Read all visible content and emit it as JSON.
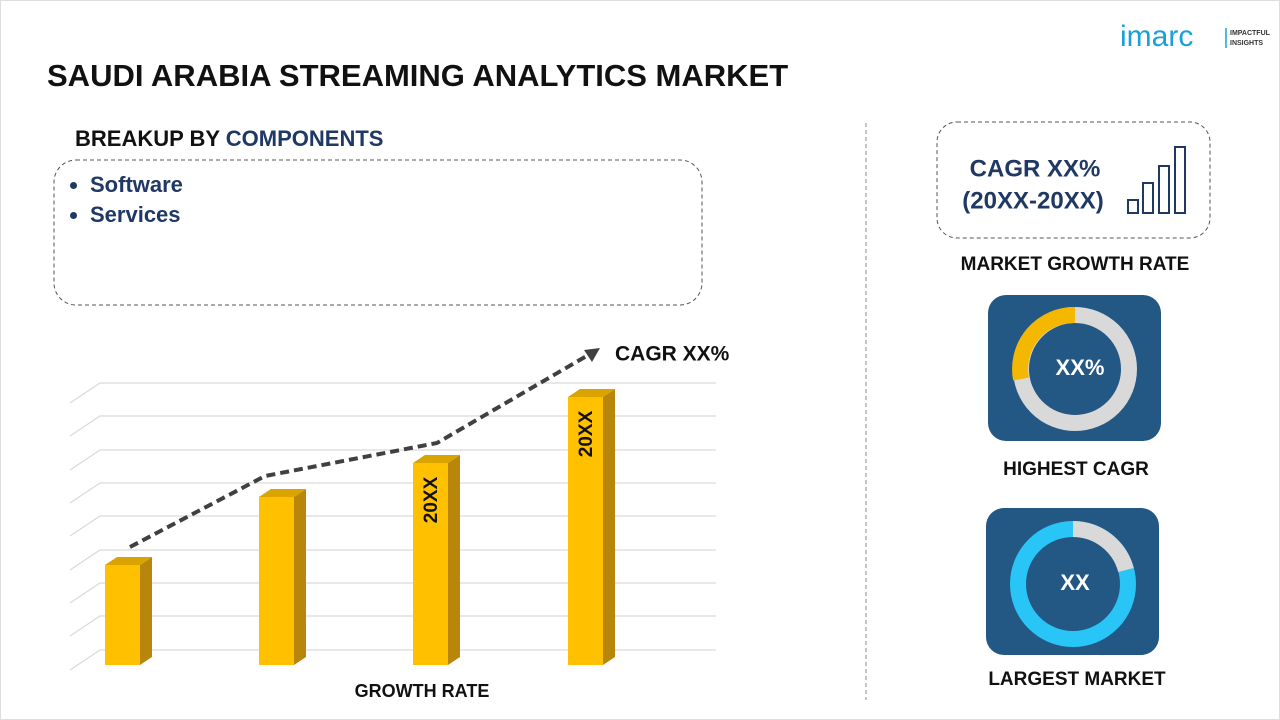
{
  "logo": {
    "name": "imarc",
    "tagline_1": "IMPACTFUL",
    "tagline_2": "INSIGHTS"
  },
  "title": "SAUDI ARABIA STREAMING ANALYTICS MARKET",
  "breakup": {
    "prefix": "BREAKUP BY",
    "label": "COMPONENTS",
    "items": [
      "Software",
      "Services"
    ]
  },
  "growth_chart": {
    "trend_label": "CAGR XX%",
    "bar_labels": [
      "20XX",
      "20XX"
    ],
    "axis_label": "GROWTH RATE"
  },
  "cagr_box": {
    "line_1": "CAGR XX%",
    "line_2": "(20XX-20XX)",
    "caption": "MARKET GROWTH RATE"
  },
  "highest_cagr": {
    "value": "XX%",
    "caption": "HIGHEST CAGR"
  },
  "largest_market": {
    "value": "XX",
    "caption": "LARGEST MARKET"
  }
}
